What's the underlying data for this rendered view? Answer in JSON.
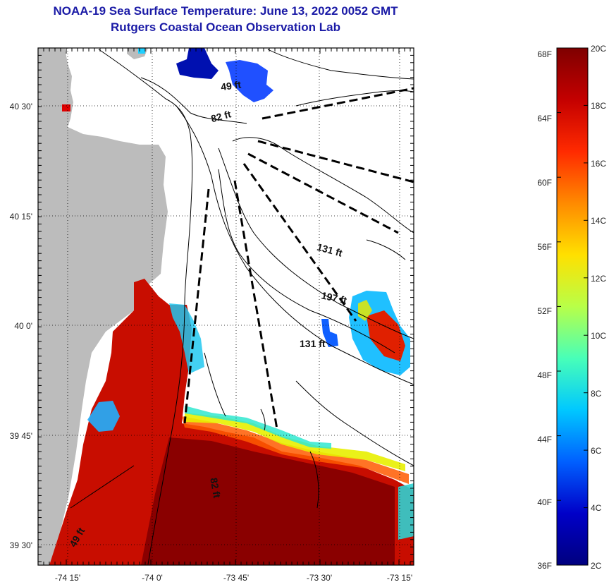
{
  "header": {
    "title_line1": "NOAA-19 Sea Surface Temperature:  June 13, 2022 0052 GMT",
    "title_line2": "Rutgers Coastal Ocean Observation Lab"
  },
  "map": {
    "lat_ticks": [
      "40 30'",
      "40 15'",
      "40 0'",
      "39 45'",
      "39 30'"
    ],
    "lon_ticks": [
      "-74 15'",
      "-74 0'",
      "-73 45'",
      "-73 30'",
      "-73 15'"
    ],
    "depth_labels": [
      "49 ft",
      "82 ft",
      "131 ft",
      "197 ft",
      "131 ft",
      "82 ft",
      "49 ft"
    ],
    "land_color": "#bcbcbc",
    "contour_color": "#000000"
  },
  "colorbar": {
    "fahrenheit_labels": [
      "68F",
      "64F",
      "60F",
      "56F",
      "52F",
      "48F",
      "44F",
      "40F",
      "36F"
    ],
    "celsius_labels": [
      "20C",
      "18C",
      "16C",
      "14C",
      "12C",
      "10C",
      "8C",
      "6C",
      "4C",
      "2C"
    ],
    "colors_top_to_bottom": [
      "#7f0000",
      "#c40000",
      "#ff2a00",
      "#ff8a00",
      "#ffe000",
      "#b8ff48",
      "#48ffb8",
      "#00c8ff",
      "#0060ff",
      "#0000c8",
      "#00007f"
    ]
  }
}
